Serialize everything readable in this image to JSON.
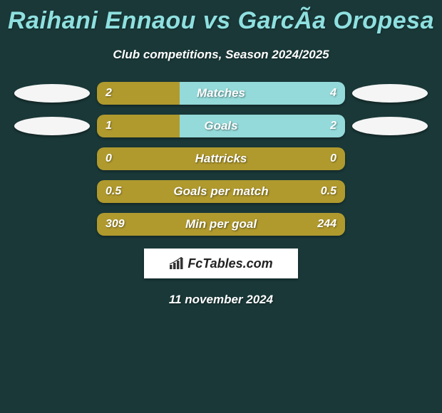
{
  "title": "Raihani Ennaou vs GarcÃ­a Oropesa",
  "subtitle": "Club competitions, Season 2024/2025",
  "footer_logo_text": "FcTables.com",
  "footer_date": "11 november 2024",
  "colors": {
    "background": "#1a3838",
    "title_color": "#8fe0e0",
    "left_bar": "#b09a2e",
    "right_bar": "#94dada",
    "left_ellipse": "#f5f5f5",
    "right_ellipse": "#f5f5f5"
  },
  "chart": {
    "type": "horizontal-split-bar",
    "bar_track_width": 348,
    "bar_track_height": 32,
    "bar_radius": 10,
    "ellipse_width": 106,
    "ellipse_height": 26,
    "label_fontsize": 17,
    "value_fontsize": 16
  },
  "stats": [
    {
      "label": "Matches",
      "left_val": "2",
      "right_val": "4",
      "left_pct": 33.3,
      "show_ellipses": true
    },
    {
      "label": "Goals",
      "left_val": "1",
      "right_val": "2",
      "left_pct": 33.3,
      "show_ellipses": true
    },
    {
      "label": "Hattricks",
      "left_val": "0",
      "right_val": "0",
      "left_pct": 100,
      "show_ellipses": false
    },
    {
      "label": "Goals per match",
      "left_val": "0.5",
      "right_val": "0.5",
      "left_pct": 100,
      "show_ellipses": false
    },
    {
      "label": "Min per goal",
      "left_val": "309",
      "right_val": "244",
      "left_pct": 100,
      "show_ellipses": false
    }
  ]
}
